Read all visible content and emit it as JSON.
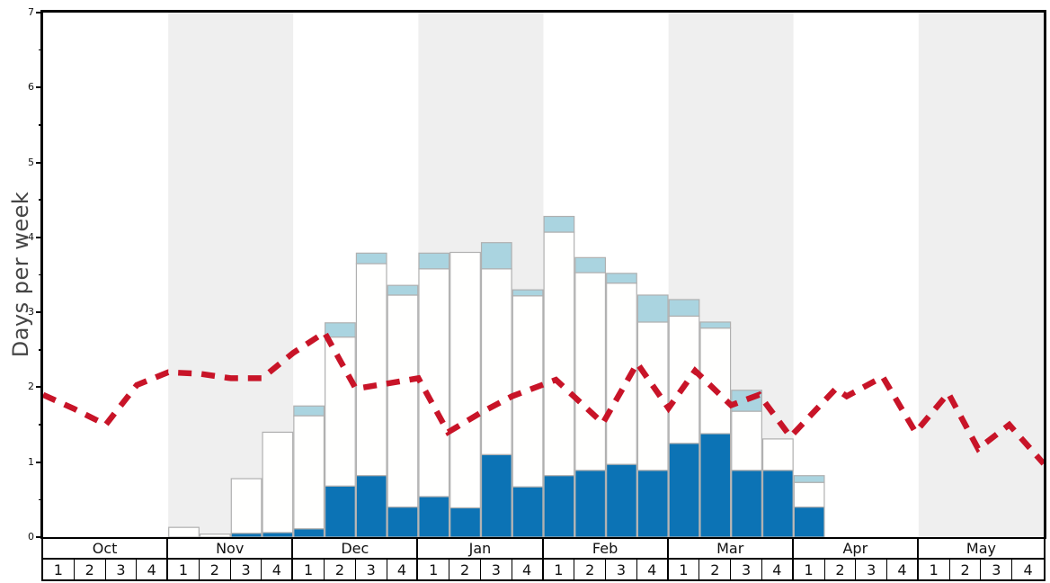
{
  "chart": {
    "y_axis": {
      "label": "Days per week",
      "min": 0,
      "max": 7,
      "major_tick_labels": [
        "0",
        "1",
        "2",
        "3",
        "4",
        "5",
        "6",
        "7"
      ],
      "minor_tick_step": 0.5
    },
    "x_axis": {
      "months": [
        "Oct",
        "Nov",
        "Dec",
        "Jan",
        "Feb",
        "Mar",
        "Apr",
        "May"
      ],
      "week_labels": [
        "1",
        "2",
        "3",
        "4"
      ]
    }
  },
  "colors": {
    "dark_blue": "#0c73b5",
    "light_blue": "#aad4e0",
    "white_bar": "#fffffe",
    "bar_border": "#b0b0b0",
    "band_gray": "#efefef",
    "band_white": "#ffffff",
    "red_line": "#c81428",
    "axis_text": "#111111",
    "y_label_text": "#454545",
    "frame": "#000000"
  },
  "chart_data": {
    "type": "bar",
    "title": "",
    "ylabel": "Days per week",
    "ylim": [
      0,
      7
    ],
    "legend_position": "none",
    "grid": "alternating month bands",
    "band_fill_order": [
      "white",
      "gray",
      "white",
      "gray",
      "white",
      "gray",
      "white",
      "gray"
    ],
    "categories": [
      "Oct-1",
      "Oct-2",
      "Oct-3",
      "Oct-4",
      "Nov-1",
      "Nov-2",
      "Nov-3",
      "Nov-4",
      "Dec-1",
      "Dec-2",
      "Dec-3",
      "Dec-4",
      "Jan-1",
      "Jan-2",
      "Jan-3",
      "Jan-4",
      "Feb-1",
      "Feb-2",
      "Feb-3",
      "Feb-4",
      "Mar-1",
      "Mar-2",
      "Mar-3",
      "Mar-4",
      "Apr-1",
      "Apr-2",
      "Apr-3",
      "Apr-4",
      "May-1",
      "May-2",
      "May-3",
      "May-4"
    ],
    "stacked_bar_tops_note": "cumulative stack heights in days/week: dark_blue bottom segment top, white middle segment top, light_blue total top",
    "series": [
      {
        "name": "dark_blue_segment_top",
        "values": [
          0,
          0,
          0,
          0,
          0,
          0,
          0.05,
          0.06,
          0.11,
          0.68,
          0.82,
          0.4,
          0.54,
          0.39,
          1.1,
          0.67,
          0.82,
          0.89,
          0.97,
          0.89,
          1.25,
          1.38,
          0.89,
          0.89,
          0.4,
          0,
          0,
          0,
          0,
          0,
          0,
          0
        ]
      },
      {
        "name": "white_segment_top",
        "values": [
          0,
          0,
          0,
          0,
          0.13,
          0.04,
          0.78,
          1.4,
          1.62,
          2.67,
          3.65,
          3.23,
          3.58,
          3.8,
          3.58,
          3.22,
          4.07,
          3.53,
          3.39,
          2.87,
          2.95,
          2.79,
          1.68,
          1.31,
          0.73,
          0,
          0,
          0,
          0,
          0,
          0,
          0
        ]
      },
      {
        "name": "light_blue_total_top",
        "values": [
          0,
          0,
          0,
          0,
          0.13,
          0.04,
          0.78,
          1.4,
          1.75,
          2.86,
          3.79,
          3.36,
          3.79,
          3.8,
          3.93,
          3.3,
          4.28,
          3.73,
          3.52,
          3.23,
          3.17,
          2.87,
          1.96,
          1.31,
          0.82,
          0,
          0,
          0,
          0,
          0,
          0,
          0
        ]
      }
    ],
    "red_dashed_line": {
      "style": "dashed",
      "x_unit": "week position, 0 = start of Oct week 1, 32 = end of May week 4",
      "points": [
        [
          0,
          1.9
        ],
        [
          1,
          1.71
        ],
        [
          2,
          1.5
        ],
        [
          3,
          2.03
        ],
        [
          4,
          2.2
        ],
        [
          5,
          2.18
        ],
        [
          6,
          2.12
        ],
        [
          7,
          2.12
        ],
        [
          8,
          2.46
        ],
        [
          9,
          2.73
        ],
        [
          10,
          1.98
        ],
        [
          11,
          2.05
        ],
        [
          12,
          2.12
        ],
        [
          12.95,
          1.4
        ],
        [
          14,
          1.66
        ],
        [
          15,
          1.88
        ],
        [
          16.4,
          2.1
        ],
        [
          17.9,
          1.52
        ],
        [
          19,
          2.32
        ],
        [
          20,
          1.72
        ],
        [
          20.85,
          2.22
        ],
        [
          22,
          1.76
        ],
        [
          22.9,
          1.9
        ],
        [
          23.9,
          1.34
        ],
        [
          25.35,
          1.98
        ],
        [
          25.7,
          1.88
        ],
        [
          26.85,
          2.14
        ],
        [
          27.9,
          1.4
        ],
        [
          28.95,
          1.92
        ],
        [
          29.9,
          1.18
        ],
        [
          30.9,
          1.5
        ],
        [
          32,
          0.98
        ]
      ]
    }
  }
}
